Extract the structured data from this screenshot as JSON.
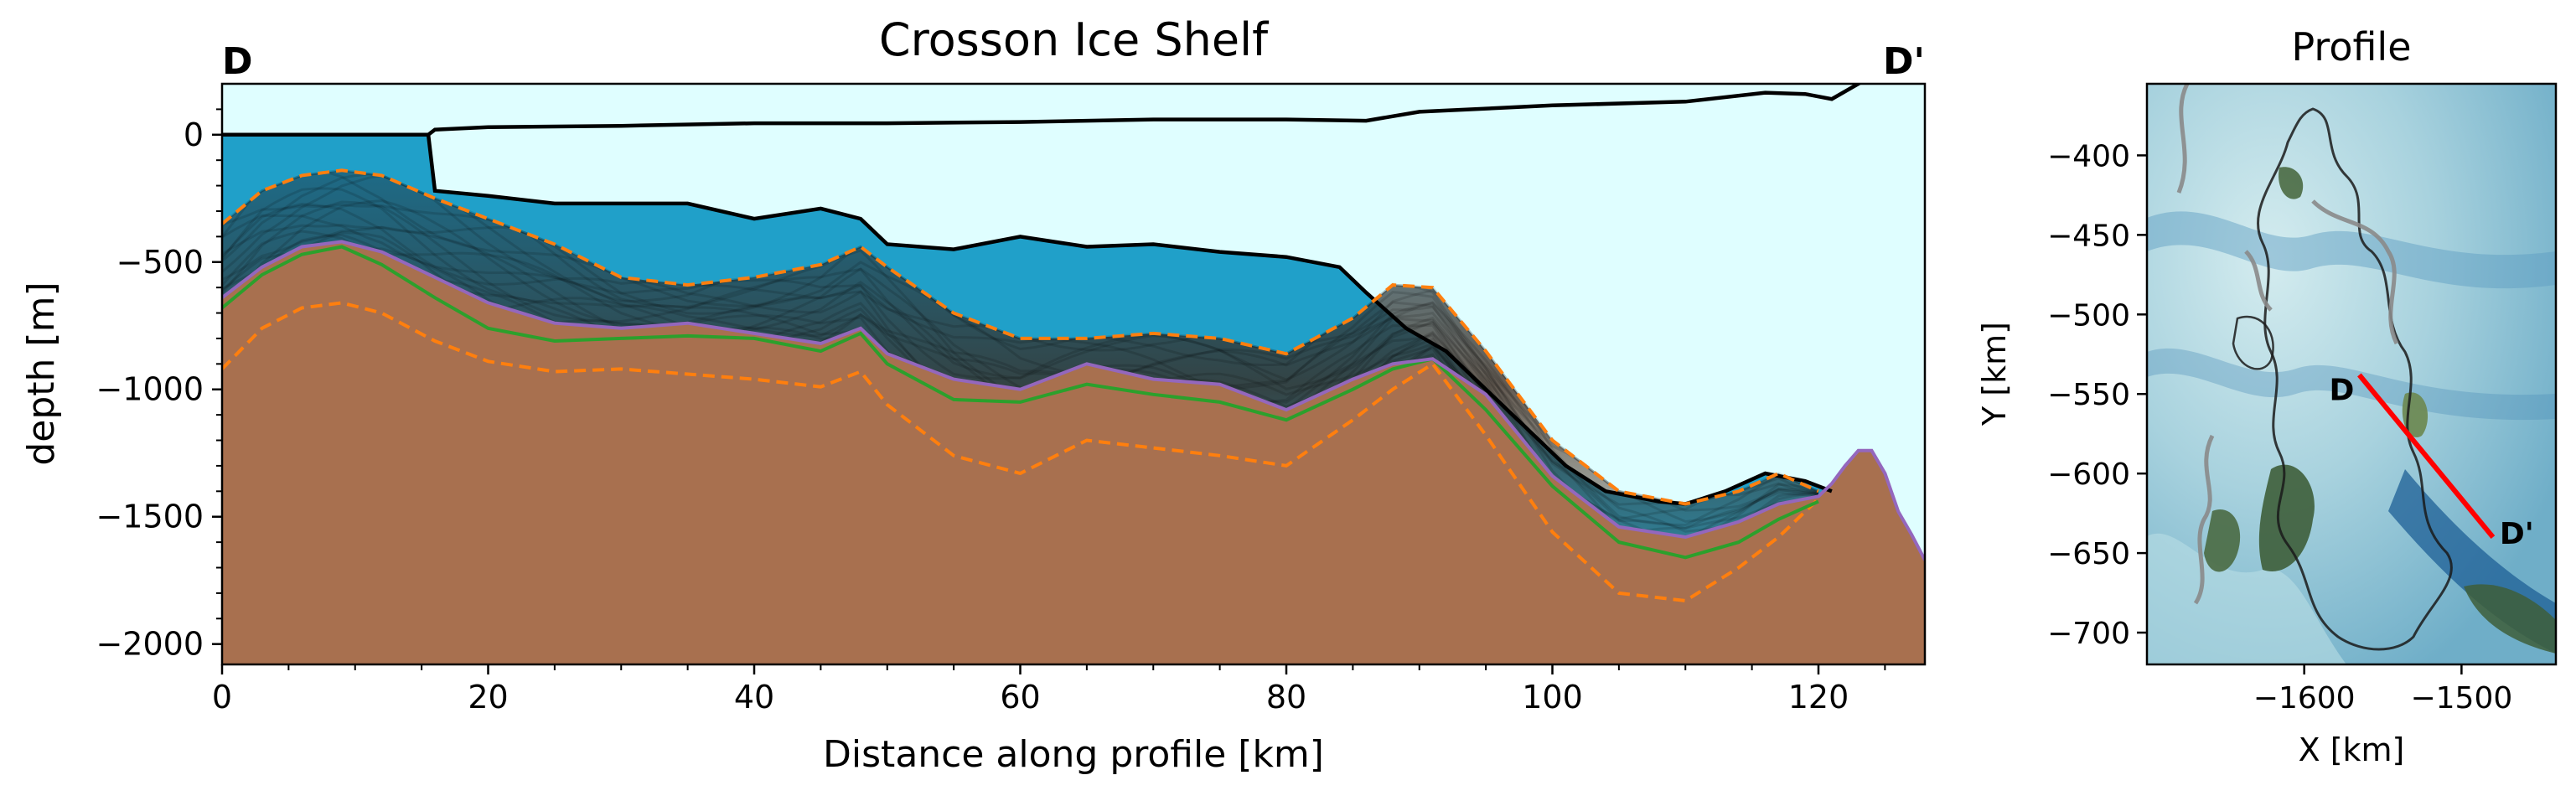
{
  "chart_data": [
    {
      "type": "area",
      "title": "Crosson Ice Shelf",
      "xlabel": "Distance along profile [km]",
      "ylabel": "depth [m]",
      "xlim": [
        0,
        128
      ],
      "ylim": [
        -2080,
        200
      ],
      "xticks": [
        0,
        20,
        40,
        60,
        80,
        100,
        120
      ],
      "yticks": [
        0,
        -500,
        -1000,
        -1500,
        -2000
      ],
      "xtick_labels": [
        "0",
        "20",
        "40",
        "60",
        "80",
        "100",
        "120"
      ],
      "ytick_labels": [
        "0",
        "−500",
        "−1000",
        "−1500",
        "−2000"
      ],
      "endpoint_labels": {
        "start": "D",
        "end": "D'"
      },
      "colors": {
        "sky": "#dffeff",
        "water": "#20a0c9",
        "bed": "#a8704f",
        "surface": "#000000",
        "ensemble_bounds": "#ff7f0e",
        "median_bed": "#2ca02c",
        "mean_bed": "#9467bd"
      },
      "series": [
        {
          "key": "ice_surface",
          "x": [
            0,
            15.5,
            16,
            20,
            30,
            40,
            50,
            60,
            70,
            80,
            86,
            90,
            100,
            110,
            116,
            119,
            121,
            123,
            124,
            128
          ],
          "y": [
            0,
            0,
            20,
            30,
            35,
            45,
            45,
            50,
            60,
            60,
            55,
            90,
            115,
            130,
            165,
            160,
            140,
            200,
            230,
            240
          ]
        },
        {
          "key": "ice_base",
          "x": [
            0,
            15.5,
            16,
            20,
            25,
            30,
            35,
            40,
            45,
            48,
            50,
            55,
            60,
            65,
            70,
            75,
            80,
            84,
            86,
            89,
            92,
            95,
            98,
            101,
            104,
            108,
            110,
            113,
            116,
            119,
            121
          ],
          "y": [
            0,
            0,
            -220,
            -240,
            -270,
            -270,
            -270,
            -330,
            -290,
            -330,
            -430,
            -450,
            -400,
            -440,
            -430,
            -460,
            -480,
            -520,
            -620,
            -760,
            -850,
            -1000,
            -1150,
            -1300,
            -1400,
            -1440,
            -1450,
            -1400,
            -1330,
            -1360,
            -1400
          ]
        },
        {
          "key": "bed_max",
          "x": [
            0,
            3,
            6,
            9,
            12,
            16,
            20,
            25,
            30,
            35,
            40,
            45,
            48,
            50,
            55,
            60,
            65,
            70,
            75,
            80,
            85,
            88,
            91,
            95,
            100,
            105,
            110,
            114,
            117,
            120
          ],
          "y": [
            -350,
            -220,
            -160,
            -140,
            -160,
            -250,
            -330,
            -430,
            -560,
            -590,
            -560,
            -510,
            -440,
            -520,
            -700,
            -800,
            -800,
            -780,
            -800,
            -860,
            -720,
            -590,
            -600,
            -850,
            -1200,
            -1400,
            -1450,
            -1400,
            -1330,
            -1400
          ]
        },
        {
          "key": "mean_bed",
          "x": [
            0,
            3,
            6,
            9,
            12,
            16,
            20,
            25,
            30,
            35,
            40,
            45,
            48,
            50,
            55,
            60,
            65,
            70,
            75,
            80,
            85,
            88,
            91,
            95,
            100,
            105,
            110,
            114,
            117,
            120,
            121,
            122,
            123,
            124,
            125,
            126,
            127,
            128
          ],
          "y": [
            -640,
            -520,
            -440,
            -420,
            -460,
            -560,
            -660,
            -740,
            -760,
            -740,
            -780,
            -820,
            -760,
            -860,
            -960,
            -1000,
            -900,
            -960,
            -980,
            -1080,
            -960,
            -900,
            -880,
            -1020,
            -1340,
            -1540,
            -1580,
            -1520,
            -1450,
            -1420,
            -1370,
            -1300,
            -1240,
            -1240,
            -1330,
            -1480,
            -1570,
            -1670
          ]
        },
        {
          "key": "median_bed",
          "x": [
            0,
            3,
            6,
            9,
            12,
            16,
            20,
            25,
            30,
            35,
            40,
            45,
            48,
            50,
            55,
            60,
            65,
            70,
            75,
            80,
            85,
            88,
            91,
            95,
            100,
            105,
            110,
            114,
            117,
            120
          ],
          "y": [
            -680,
            -550,
            -470,
            -440,
            -510,
            -640,
            -760,
            -810,
            -800,
            -790,
            -800,
            -850,
            -780,
            -900,
            -1040,
            -1050,
            -980,
            -1020,
            -1050,
            -1120,
            -1000,
            -920,
            -880,
            -1080,
            -1380,
            -1600,
            -1660,
            -1600,
            -1510,
            -1440
          ]
        },
        {
          "key": "bed_min",
          "x": [
            0,
            3,
            6,
            9,
            12,
            16,
            20,
            25,
            30,
            35,
            40,
            45,
            48,
            50,
            55,
            60,
            65,
            70,
            75,
            80,
            85,
            88,
            91,
            95,
            100,
            105,
            110,
            114,
            117,
            120
          ],
          "y": [
            -920,
            -760,
            -680,
            -660,
            -700,
            -810,
            -890,
            -930,
            -920,
            -940,
            -960,
            -990,
            -930,
            -1060,
            -1260,
            -1330,
            -1200,
            -1230,
            -1260,
            -1300,
            -1120,
            -1000,
            -900,
            -1180,
            -1560,
            -1800,
            -1830,
            -1700,
            -1580,
            -1430
          ]
        }
      ]
    },
    {
      "type": "map",
      "title": "Profile",
      "xlabel": "X [km]",
      "ylabel": "Y [km]",
      "xlim": [
        -1700,
        -1440
      ],
      "ylim": [
        -720,
        -355
      ],
      "xticks": [
        -1600,
        -1500
      ],
      "yticks": [
        -400,
        -450,
        -500,
        -550,
        -600,
        -650,
        -700
      ],
      "xtick_labels": [
        "−1600",
        "−1500"
      ],
      "ytick_labels": [
        "−400",
        "−450",
        "−500",
        "−550",
        "−600",
        "−650",
        "−700"
      ],
      "profile_line": {
        "x": [
          -1565,
          -1480
        ],
        "y": [
          -538,
          -640
        ],
        "color": "#ff0000"
      },
      "endpoint_labels": {
        "start": "D",
        "end": "D'"
      }
    }
  ]
}
